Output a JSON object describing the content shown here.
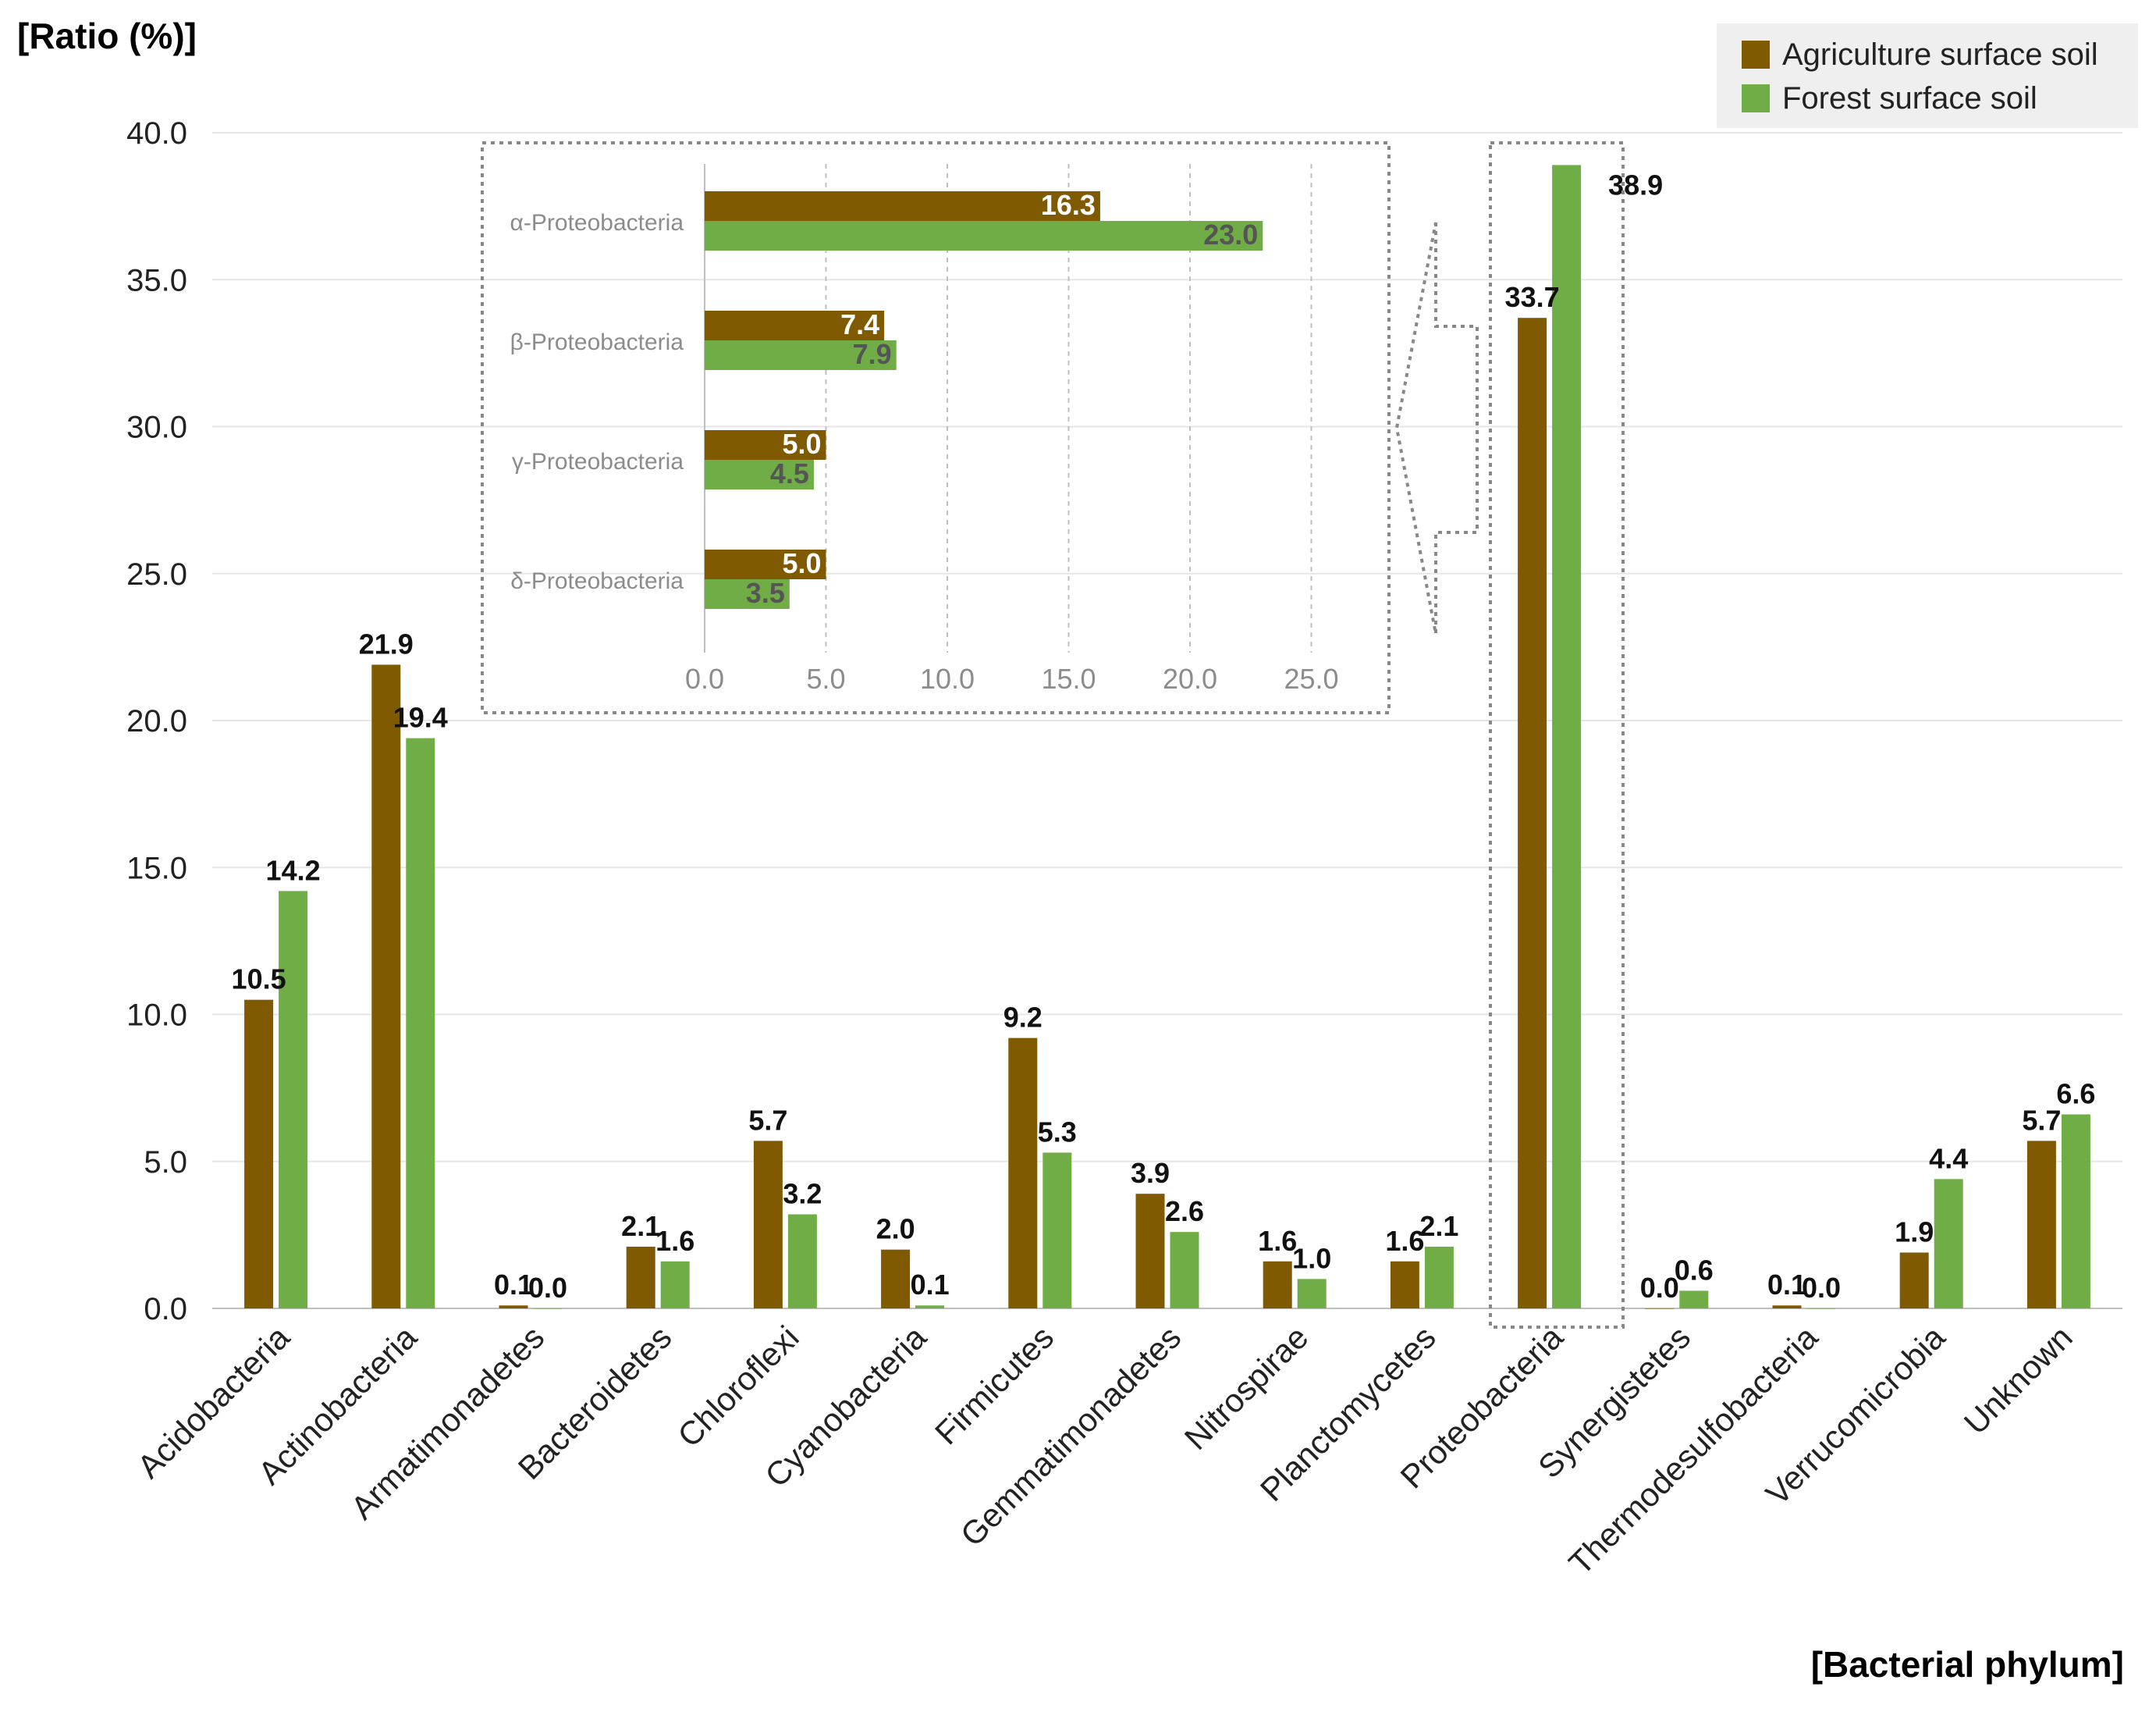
{
  "chart_data": [
    {
      "type": "bar",
      "ylabel": "[Ratio (%)]",
      "xlabel": "[Bacterial phylum]",
      "ylim": [
        0,
        40
      ],
      "yticks": [
        "0.0",
        "5.0",
        "10.0",
        "15.0",
        "20.0",
        "25.0",
        "30.0",
        "35.0",
        "40.0"
      ],
      "grid": true,
      "legend_position": "top-right",
      "categories": [
        "Acidobacteria",
        "Actinobacteria",
        "Armatimonadetes",
        "Bacteroidetes",
        "Chloroflexi",
        "Cyanobacteria",
        "Firmicutes",
        "Gemmatimonadetes",
        "Nitrospirae",
        "Planctomycetes",
        "Proteobacteria",
        "Synergistetes",
        "Thermodesulfobacteria",
        "Verrucomicrobia",
        "Unknown"
      ],
      "series": [
        {
          "name": "Agriculture surface soil",
          "color": "#7f5a00",
          "values": [
            10.5,
            21.9,
            0.1,
            2.1,
            5.7,
            2.0,
            9.2,
            3.9,
            1.6,
            1.6,
            33.7,
            0.0,
            0.1,
            1.9,
            5.7
          ],
          "labels": [
            "10.5",
            "21.9",
            "0.1",
            "2.1",
            "5.7",
            "2.0",
            "9.2",
            "3.9",
            "1.6",
            "1.6",
            "33.7",
            "0.0",
            "0.1",
            "1.9",
            "5.7"
          ]
        },
        {
          "name": "Forest surface soil",
          "color": "#70ad47",
          "values": [
            14.2,
            19.4,
            0.0,
            1.6,
            3.2,
            0.1,
            5.3,
            2.6,
            1.0,
            2.1,
            38.9,
            0.6,
            0.0,
            4.4,
            6.6
          ],
          "labels": [
            "14.2",
            "19.4",
            "0.0",
            "1.6",
            "3.2",
            "0.1",
            "5.3",
            "2.6",
            "1.0",
            "2.1",
            "38.9",
            "0.6",
            "0.0",
            "4.4",
            "6.6"
          ]
        }
      ]
    },
    {
      "type": "bar",
      "orientation": "horizontal",
      "xlim": [
        0,
        25
      ],
      "xticks": [
        "0.0",
        "5.0",
        "10.0",
        "15.0",
        "20.0",
        "25.0"
      ],
      "grid": true,
      "categories": [
        "α-Proteobacteria",
        "β-Proteobacteria",
        "γ-Proteobacteria",
        "δ-Proteobacteria"
      ],
      "series": [
        {
          "name": "Agriculture surface soil",
          "color": "#7f5a00",
          "values": [
            16.3,
            7.4,
            5.0,
            5.0
          ],
          "labels": [
            "16.3",
            "7.4",
            "5.0",
            "5.0"
          ]
        },
        {
          "name": "Forest surface soil",
          "color": "#70ad47",
          "values": [
            23.0,
            7.9,
            4.5,
            3.5
          ],
          "labels": [
            "23.0",
            "7.9",
            "4.5",
            "3.5"
          ]
        }
      ]
    }
  ]
}
